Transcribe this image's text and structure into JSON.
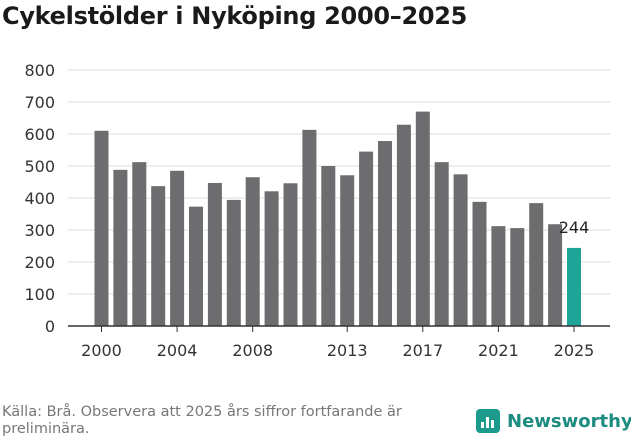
{
  "title": "Cykelstölder i Nyköping 2000–2025",
  "source": "Källa: Brå. Observera att 2025 års siffror fortfarande är preliminära.",
  "brand": "Newsworthy",
  "colors": {
    "bar": "#6d6d70",
    "highlight": "#1ea597",
    "grid": "#dcdcdc",
    "axis": "#333333"
  },
  "chart_data": {
    "type": "bar",
    "title": "Cykelstölder i Nyköping 2000–2025",
    "xlabel": "",
    "ylabel": "",
    "ylim": [
      0,
      800
    ],
    "yticks": [
      0,
      100,
      200,
      300,
      400,
      500,
      600,
      700,
      800
    ],
    "xtick_labels": [
      "2000",
      "2004",
      "2008",
      "2013",
      "2017",
      "2021",
      "2025"
    ],
    "categories": [
      2000,
      2001,
      2002,
      2003,
      2004,
      2005,
      2006,
      2007,
      2008,
      2009,
      2010,
      2011,
      2012,
      2013,
      2014,
      2015,
      2016,
      2017,
      2018,
      2019,
      2020,
      2021,
      2022,
      2023,
      2024,
      2025
    ],
    "values": [
      610,
      488,
      512,
      437,
      485,
      373,
      447,
      394,
      465,
      421,
      446,
      613,
      500,
      471,
      545,
      578,
      629,
      670,
      512,
      474,
      388,
      312,
      306,
      384,
      318,
      244
    ],
    "highlight_index": 25,
    "highlight_label": "244",
    "grid": true
  }
}
